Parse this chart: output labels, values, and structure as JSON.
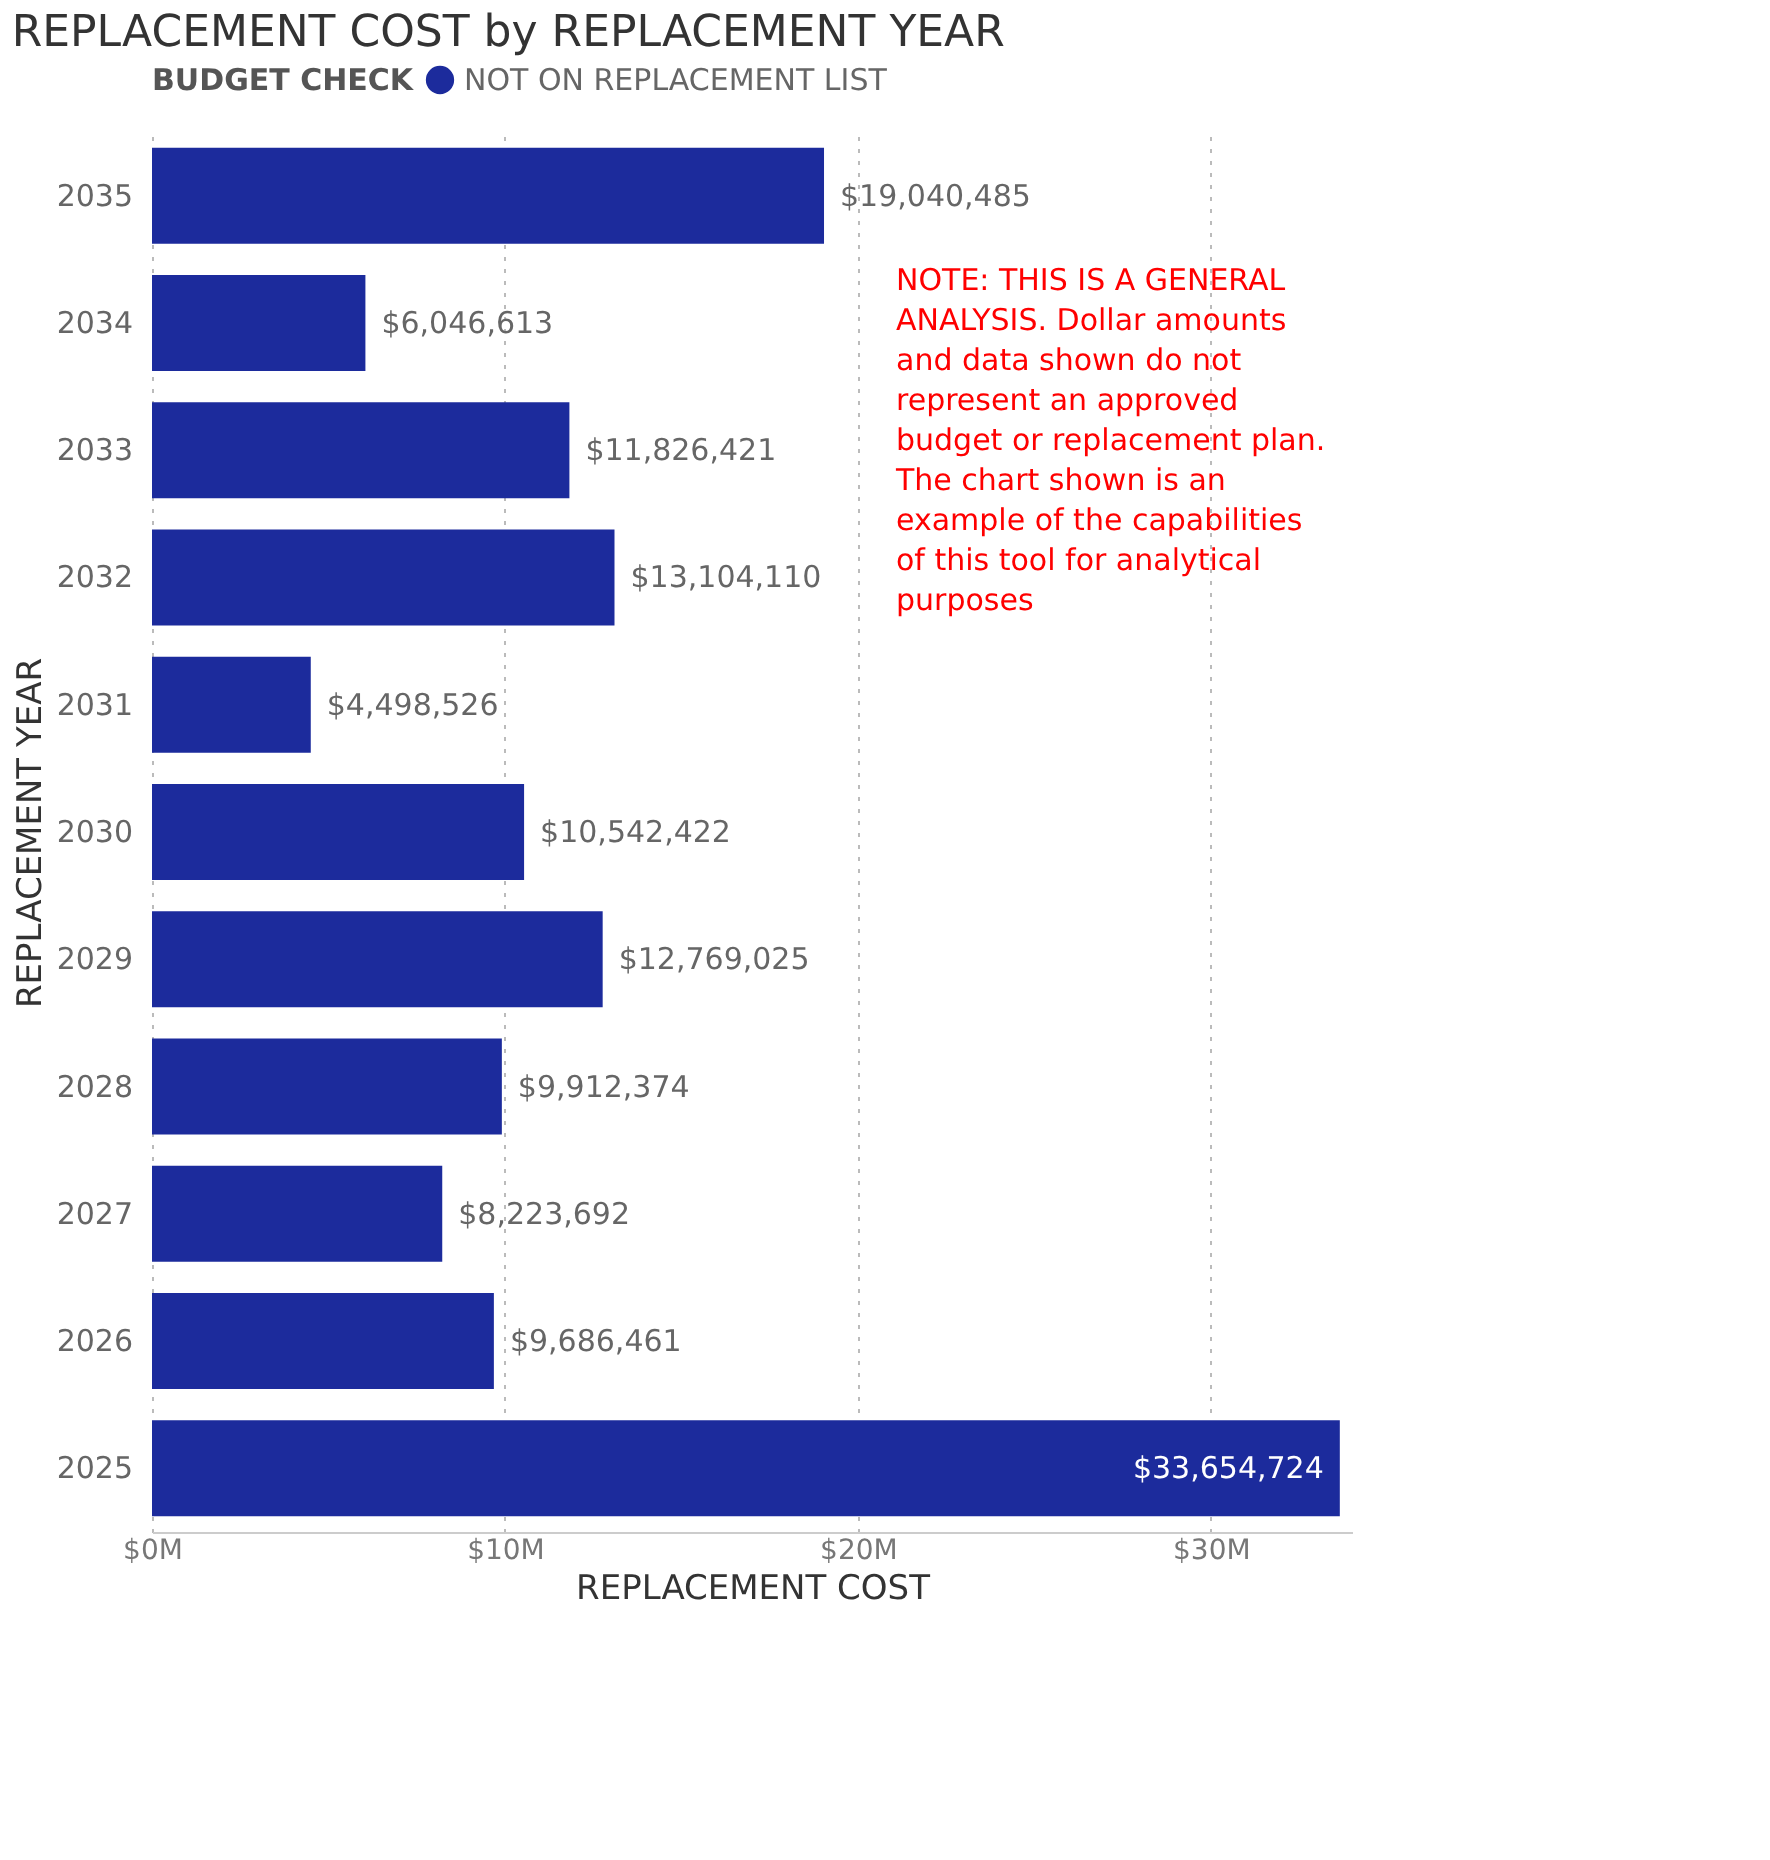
{
  "chart_data": {
    "type": "bar",
    "orientation": "horizontal",
    "title": "REPLACEMENT COST by REPLACEMENT YEAR",
    "xlabel": "REPLACEMENT COST",
    "ylabel": "REPLACEMENT YEAR",
    "legend_title": "BUDGET CHECK",
    "legend": "top left",
    "categories": [
      "2035",
      "2034",
      "2033",
      "2032",
      "2031",
      "2030",
      "2029",
      "2028",
      "2027",
      "2026",
      "2025"
    ],
    "series": [
      {
        "name": "NOT ON REPLACEMENT LIST",
        "color": "#1c2b9c",
        "values": [
          19040485,
          6046613,
          11826421,
          13104110,
          4498526,
          10542422,
          12769025,
          9912374,
          8223692,
          9686461,
          33654724
        ],
        "value_labels": [
          "$19,040,485",
          "$6,046,613",
          "$11,826,421",
          "$13,104,110",
          "$4,498,526",
          "$10,542,422",
          "$12,769,025",
          "$9,912,374",
          "$8,223,692",
          "$9,686,461",
          "$33,654,724"
        ]
      }
    ],
    "xlim": [
      0,
      34000000
    ],
    "xticks": [
      {
        "value": 0,
        "label": "$0M"
      },
      {
        "value": 10000000,
        "label": "$10M"
      },
      {
        "value": 20000000,
        "label": "$20M"
      },
      {
        "value": 30000000,
        "label": "$30M"
      }
    ],
    "grid": "x",
    "annotations": [
      "NOTE: THIS IS A GENERAL ANALYSIS. Dollar amounts and data shown do not represent an approved budget or replacement plan. The chart shown is an example of the capabilities of this tool for analytical purposes"
    ]
  }
}
